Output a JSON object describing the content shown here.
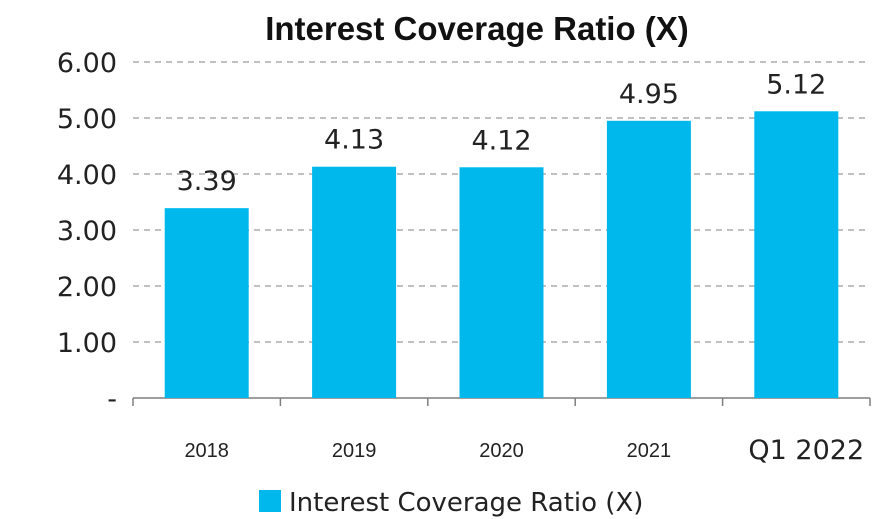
{
  "chart_data": {
    "type": "bar",
    "title": "Interest Coverage Ratio (X)",
    "categories": [
      "2018",
      "2019",
      "2020",
      "2021",
      "Q1 2022"
    ],
    "series": [
      {
        "name": "Interest Coverage Ratio (X)",
        "values": [
          3.39,
          4.13,
          4.12,
          4.95,
          5.12
        ],
        "data_labels": [
          "3.39",
          "4.13",
          "4.12",
          "4.95",
          "5.12"
        ],
        "color": "#00b8ec"
      }
    ],
    "ylim": [
      0,
      6
    ],
    "ytick_values": [
      0,
      1,
      2,
      3,
      4,
      5,
      6
    ],
    "ytick_labels": [
      "-",
      "1.00",
      "2.00",
      "3.00",
      "4.00",
      "5.00",
      "6.00"
    ],
    "grid": true,
    "legend_position": "bottom",
    "xlabel": "",
    "ylabel": ""
  }
}
